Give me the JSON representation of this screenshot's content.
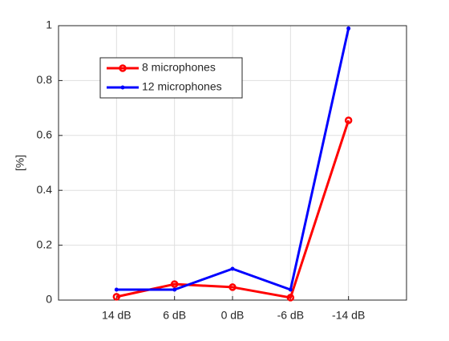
{
  "chart_data": {
    "type": "line",
    "ylabel": "[%]",
    "categories": [
      "14 dB",
      "6 dB",
      "0 dB",
      "-6 dB",
      "-14 dB"
    ],
    "series": [
      {
        "name": "8 microphones",
        "color": "#ff0000",
        "marker": "circle",
        "values": [
          0.012,
          0.058,
          0.047,
          0.009,
          0.655
        ]
      },
      {
        "name": "12 microphones",
        "color": "#0000ff",
        "marker": "point",
        "values": [
          0.038,
          0.038,
          0.114,
          0.038,
          0.99
        ]
      }
    ],
    "ylim": [
      0,
      1
    ],
    "yticks": [
      0,
      0.2,
      0.4,
      0.6,
      0.8,
      1
    ],
    "grid": true,
    "legend": "northwest"
  }
}
